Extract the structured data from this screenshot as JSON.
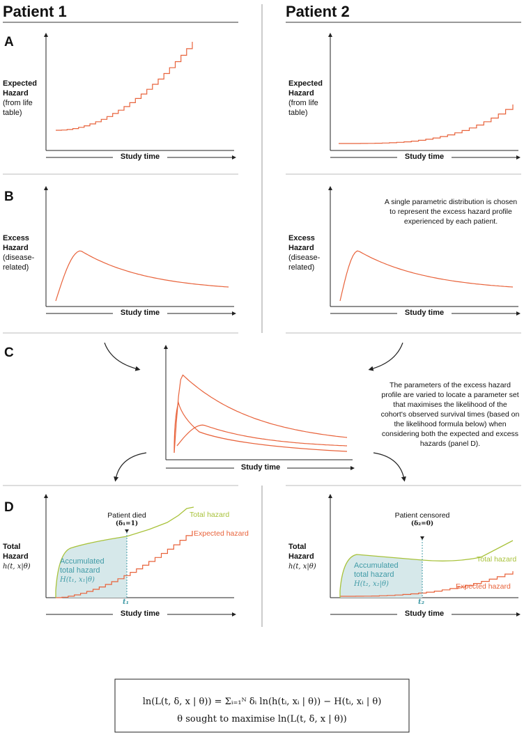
{
  "headers": {
    "patient1": "Patient 1",
    "patient2": "Patient 2"
  },
  "panels": {
    "a": "A",
    "b": "B",
    "c": "C",
    "d": "D"
  },
  "axis": {
    "study_time": "Study time",
    "expected": {
      "title1": "Expected",
      "title2": "Hazard",
      "sub": [
        "(from life",
        "table)"
      ]
    },
    "excess": {
      "title1": "Excess",
      "title2": "Hazard",
      "sub": [
        "(disease-",
        "related)"
      ]
    },
    "total": {
      "title1": "Total",
      "title2": "Hazard",
      "sub": [
        "h(t, x|θ)"
      ]
    }
  },
  "notes": {
    "panel_b": "A single parametric distribution is chosen to represent the excess hazard profile experienced by each patient.",
    "panel_c": "The parameters of the excess hazard profile are varied to locate a parameter set that maximises the likelihood of the cohort's observed survival times (based on the likelihood formula below) when considering both the expected and excess hazards (panel D)."
  },
  "panel_d": {
    "p1": {
      "event": "Patient died",
      "event_sub": "(δ₁=1)",
      "total_label": "Total hazard",
      "expected_label": "Expected hazard",
      "accum_line1": "Accumulated",
      "accum_line2": "total hazard",
      "accum_formula": "H(t₁, x₁|θ)",
      "time_mark": "t₁"
    },
    "p2": {
      "event": "Patient censored",
      "event_sub": "(δ₂=0)",
      "total_label": "Total hazard",
      "expected_label": "Expected hazard",
      "accum_line1": "Accumulated",
      "accum_line2": "total hazard",
      "accum_formula": "H(t₂, x₂|θ)",
      "time_mark": "t₂"
    }
  },
  "formula": {
    "line1": "ln(L(t, δ, x | θ))  =  Σᵢ₌₁ᴺ δᵢ ln(h(tᵢ, xᵢ | θ))  −  H(tᵢ, xᵢ | θ)",
    "line2": "θ sought to maximise ln(L(t, δ, x | θ))"
  },
  "colors": {
    "expected": "#e8623a",
    "total": "#a8c23a",
    "area": "#d6e8ea",
    "teal": "#3f9aa6"
  }
}
